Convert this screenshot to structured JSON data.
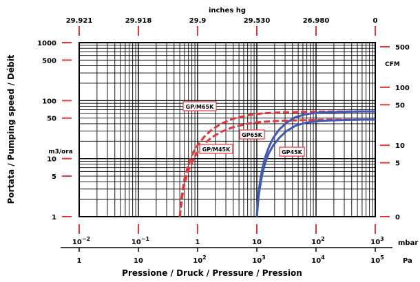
{
  "chart_data": {
    "type": "line",
    "title": "",
    "xscale": "log",
    "yscale": "log",
    "xlim_mbar": [
      0.01,
      1000
    ],
    "ylim_m3h": [
      1,
      1000
    ],
    "grid": true,
    "legend": "inline labels",
    "top_axis": {
      "title": "inches hg",
      "ticks": [
        {
          "x_mbar": 0.01,
          "label": "29.921"
        },
        {
          "x_mbar": 0.1,
          "label": "29.918"
        },
        {
          "x_mbar": 1,
          "label": "29.9"
        },
        {
          "x_mbar": 10,
          "label": "29.530"
        },
        {
          "x_mbar": 100,
          "label": "26.980"
        },
        {
          "x_mbar": 1000,
          "label": "0"
        }
      ]
    },
    "bottom_axis_mbar": {
      "unit": "mbar",
      "ticks": [
        {
          "x_mbar": 0.01,
          "base": "10",
          "exp": "−2"
        },
        {
          "x_mbar": 0.1,
          "base": "10",
          "exp": "−1"
        },
        {
          "x_mbar": 1,
          "base": "1",
          "exp": ""
        },
        {
          "x_mbar": 10,
          "base": "10",
          "exp": ""
        },
        {
          "x_mbar": 100,
          "base": "10",
          "exp": "2"
        },
        {
          "x_mbar": 1000,
          "base": "10",
          "exp": "3"
        }
      ]
    },
    "bottom_axis_pa": {
      "unit": "Pa",
      "ticks": [
        {
          "x_mbar": 0.01,
          "base": "1",
          "exp": ""
        },
        {
          "x_mbar": 0.1,
          "base": "10",
          "exp": ""
        },
        {
          "x_mbar": 1,
          "base": "10",
          "exp": "2"
        },
        {
          "x_mbar": 10,
          "base": "10",
          "exp": "3"
        },
        {
          "x_mbar": 100,
          "base": "10",
          "exp": "4"
        },
        {
          "x_mbar": 1000,
          "base": "10",
          "exp": "5"
        }
      ]
    },
    "xlabel": "Pressione  /  Druck  /  Pressure  /  Pression",
    "ylabel": "Portata  /  Pumping speed  /  Débit",
    "left_axis": {
      "unit": "m3/ora",
      "ticks": [
        {
          "y": 1000,
          "label": "1000"
        },
        {
          "y": 500,
          "label": "500"
        },
        {
          "y": 100,
          "label": "100"
        },
        {
          "y": 50,
          "label": "50"
        },
        {
          "y": 10,
          "label": "10"
        },
        {
          "y": 5,
          "label": "5"
        },
        {
          "y": 1,
          "label": "1"
        }
      ]
    },
    "right_axis": {
      "unit": "CFM",
      "ticks": [
        {
          "y_m3h": 850,
          "label": "500"
        },
        {
          "y_m3h": 170,
          "label": "100"
        },
        {
          "y_m3h": 85,
          "label": "50"
        },
        {
          "y_m3h": 17,
          "label": "10"
        },
        {
          "y_m3h": 8.5,
          "label": "5"
        },
        {
          "y_m3h": 1,
          "label": "0"
        }
      ]
    },
    "series": [
      {
        "name": "GP/M65K",
        "color": "#e8333b",
        "dashed": true,
        "x": [
          0.5,
          0.52,
          0.55,
          0.6,
          0.7,
          0.85,
          1.0,
          1.3,
          1.7,
          2.5,
          4,
          7,
          12,
          25,
          60,
          150,
          400,
          1000
        ],
        "y": [
          1,
          1.6,
          2.6,
          4.5,
          8,
          13,
          17,
          24,
          31,
          40,
          49,
          56,
          60,
          63,
          64,
          65,
          65,
          65
        ]
      },
      {
        "name": "GP/M45K",
        "color": "#e8333b",
        "dashed": true,
        "x": [
          0.5,
          0.52,
          0.55,
          0.6,
          0.7,
          0.85,
          1.0,
          1.3,
          1.7,
          2.5,
          4,
          7,
          12,
          25,
          60,
          150,
          400,
          1000
        ],
        "y": [
          1,
          1.4,
          2.2,
          3.7,
          6.3,
          9.8,
          13,
          18,
          23,
          29,
          35,
          40,
          43,
          45,
          46,
          47,
          47,
          47
        ]
      },
      {
        "name": "GP65K",
        "color": "#4059b7",
        "dashed": false,
        "x": [
          10,
          10.3,
          10.7,
          11.5,
          12.5,
          14,
          16,
          19,
          24,
          32,
          45,
          70,
          120,
          250,
          600,
          1000
        ],
        "y": [
          1,
          1.6,
          2.6,
          4.4,
          7,
          11,
          16,
          23,
          32,
          42,
          52,
          59,
          63,
          64,
          65,
          65
        ]
      },
      {
        "name": "GP45K",
        "color": "#4059b7",
        "dashed": false,
        "x": [
          10,
          10.3,
          10.7,
          11.5,
          12.5,
          14,
          16,
          19,
          24,
          32,
          45,
          70,
          120,
          250,
          600,
          1000
        ],
        "y": [
          1,
          1.4,
          2.2,
          3.6,
          5.7,
          8.8,
          12.5,
          17,
          23,
          30,
          37,
          42,
          45,
          46,
          47,
          47
        ]
      }
    ]
  }
}
